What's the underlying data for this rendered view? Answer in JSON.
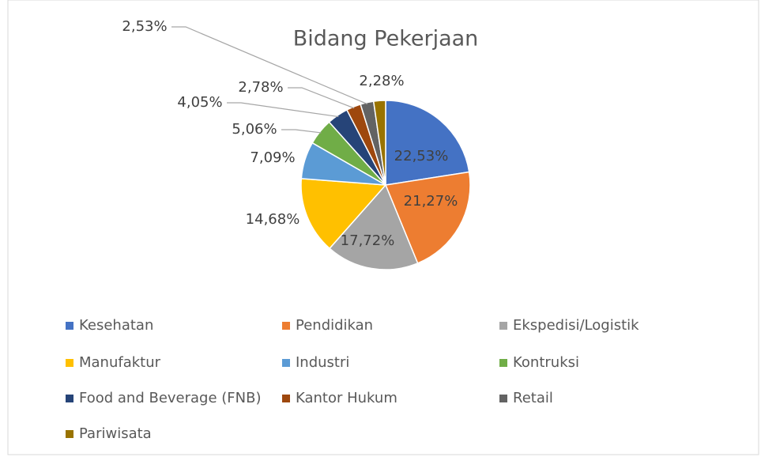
{
  "chart_data": {
    "type": "pie",
    "title": "Bidang Pekerjaan",
    "categories": [
      "Kesehatan",
      "Pendidikan",
      "Ekspedisi/Logistik",
      "Manufaktur",
      "Industri",
      "Kontruksi",
      "Food and Beverage (FNB)",
      "Kantor Hukum",
      "Retail",
      "Pariwisata"
    ],
    "values": [
      22.53,
      21.27,
      17.72,
      14.68,
      7.09,
      5.06,
      4.05,
      2.78,
      2.53,
      2.28
    ],
    "value_labels": [
      "22,53%",
      "21,27%",
      "17,72%",
      "14,68%",
      "7,09%",
      "5,06%",
      "4,05%",
      "2,78%",
      "2,53%",
      "2,28%"
    ],
    "colors": [
      "#4472c4",
      "#ed7d31",
      "#a5a5a5",
      "#ffc000",
      "#5b9bd5",
      "#70ad47",
      "#264478",
      "#9e480e",
      "#636363",
      "#997300"
    ],
    "legend": "bottom"
  }
}
